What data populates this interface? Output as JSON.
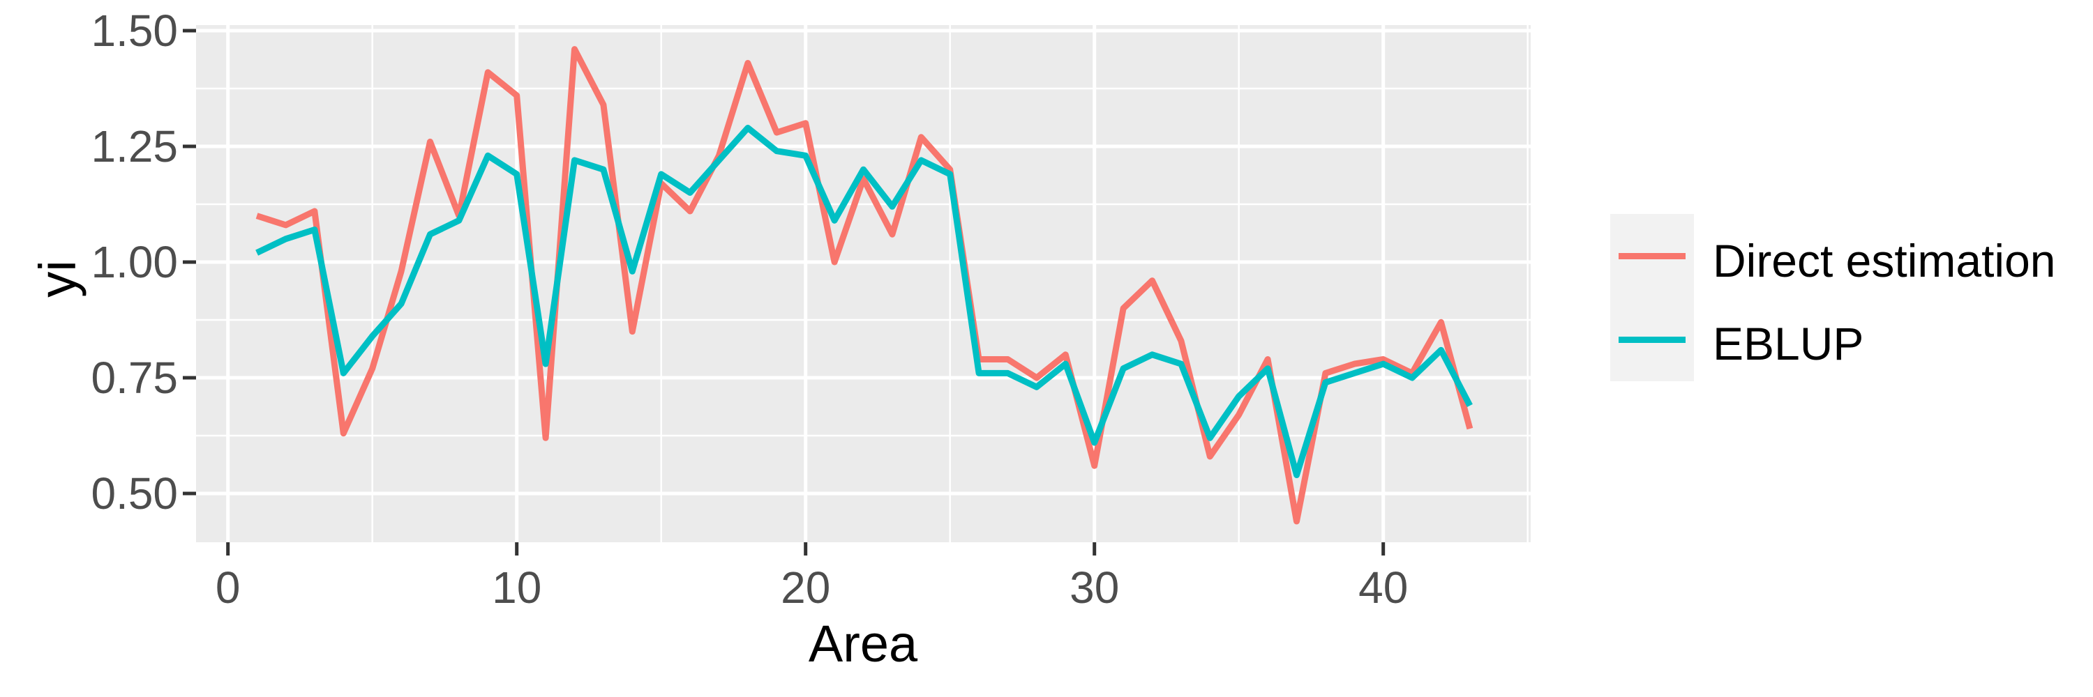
{
  "figure": {
    "background": "#FFFFFF",
    "panel_background": "#EBEBEB",
    "grid_color": "#FFFFFF",
    "tick_color": "#333333",
    "tick_label_color": "#4D4D4D",
    "axis_title_color": "#000000",
    "legend_key_background": "#F2F2F2"
  },
  "chart_data": {
    "type": "line",
    "title": "",
    "xlabel": "Area",
    "ylabel": "yi",
    "grid": true,
    "legend_position": "right",
    "xlim": [
      -1.104,
      45.104
    ],
    "ylim": [
      0.3946,
      1.5121
    ],
    "x_tick_values": [
      0,
      10,
      20,
      30,
      40
    ],
    "x_tick_labels": [
      "0",
      "10",
      "20",
      "30",
      "40"
    ],
    "y_tick_values": [
      0.5,
      0.75,
      1.0,
      1.25,
      1.5
    ],
    "y_tick_labels": [
      "0.50",
      "0.75",
      "1.00",
      "1.25",
      "1.50"
    ],
    "x_minor_tick_values": [
      5,
      15,
      25,
      35,
      45
    ],
    "y_minor_tick_values": [
      0.625,
      0.875,
      1.125,
      1.375
    ],
    "x": [
      1,
      2,
      3,
      4,
      5,
      6,
      7,
      8,
      9,
      10,
      11,
      12,
      13,
      14,
      15,
      16,
      17,
      18,
      19,
      20,
      21,
      22,
      23,
      24,
      25,
      26,
      27,
      28,
      29,
      30,
      31,
      32,
      33,
      34,
      35,
      36,
      37,
      38,
      39,
      40,
      41,
      42,
      43
    ],
    "series": [
      {
        "name": "Direct estimation",
        "color": "#F8766D",
        "values": [
          1.1,
          1.08,
          1.11,
          0.63,
          0.77,
          0.98,
          1.26,
          1.1,
          1.41,
          1.36,
          0.62,
          1.46,
          1.34,
          0.85,
          1.17,
          1.11,
          1.23,
          1.43,
          1.28,
          1.3,
          1.0,
          1.18,
          1.06,
          1.27,
          1.2,
          0.79,
          0.79,
          0.75,
          0.8,
          0.56,
          0.9,
          0.96,
          0.83,
          0.58,
          0.67,
          0.79,
          0.44,
          0.76,
          0.78,
          0.79,
          0.76,
          0.87,
          0.64
        ]
      },
      {
        "name": "EBLUP",
        "color": "#00BFC4",
        "values": [
          1.02,
          1.05,
          1.07,
          0.76,
          0.84,
          0.91,
          1.06,
          1.09,
          1.23,
          1.19,
          0.78,
          1.22,
          1.2,
          0.98,
          1.19,
          1.15,
          1.22,
          1.29,
          1.24,
          1.23,
          1.09,
          1.2,
          1.12,
          1.22,
          1.19,
          0.76,
          0.76,
          0.73,
          0.78,
          0.61,
          0.77,
          0.8,
          0.78,
          0.62,
          0.71,
          0.77,
          0.54,
          0.74,
          0.76,
          0.78,
          0.75,
          0.81,
          0.69
        ]
      }
    ]
  },
  "legend": {
    "items": [
      {
        "label": "Direct estimation",
        "color": "#F8766D"
      },
      {
        "label": "EBLUP",
        "color": "#00BFC4"
      }
    ]
  }
}
